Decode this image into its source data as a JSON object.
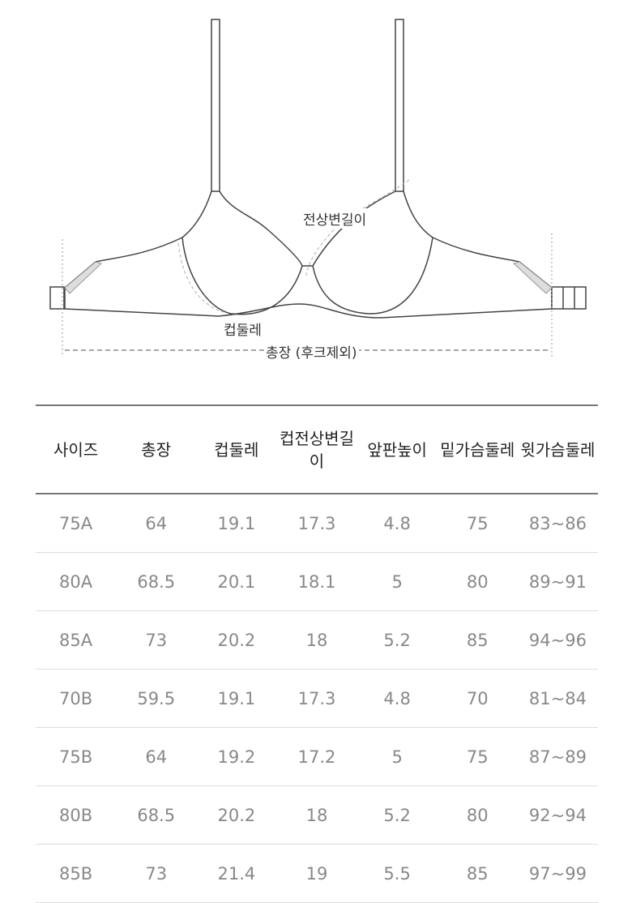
{
  "diagram": {
    "labels": {
      "strap_length": "전상변길이",
      "cup_circumference": "컵둘레",
      "total_length": "총장 (후크제외)"
    }
  },
  "table": {
    "headers": [
      "사이즈",
      "총장",
      "컵둘레",
      "컵전상변길이",
      "앞판높이",
      "밑가슴둘레",
      "윗가슴둘레"
    ],
    "rows": [
      [
        "75A",
        "64",
        "19.1",
        "17.3",
        "4.8",
        "75",
        "83~86"
      ],
      [
        "80A",
        "68.5",
        "20.1",
        "18.1",
        "5",
        "80",
        "89~91"
      ],
      [
        "85A",
        "73",
        "20.2",
        "18",
        "5.2",
        "85",
        "94~96"
      ],
      [
        "70B",
        "59.5",
        "19.1",
        "17.3",
        "4.8",
        "70",
        "81~84"
      ],
      [
        "75B",
        "64",
        "19.2",
        "17.2",
        "5",
        "75",
        "87~89"
      ],
      [
        "80B",
        "68.5",
        "20.2",
        "18",
        "5.2",
        "80",
        "92~94"
      ],
      [
        "85B",
        "73",
        "21.4",
        "19",
        "5.5",
        "85",
        "97~99"
      ]
    ]
  }
}
